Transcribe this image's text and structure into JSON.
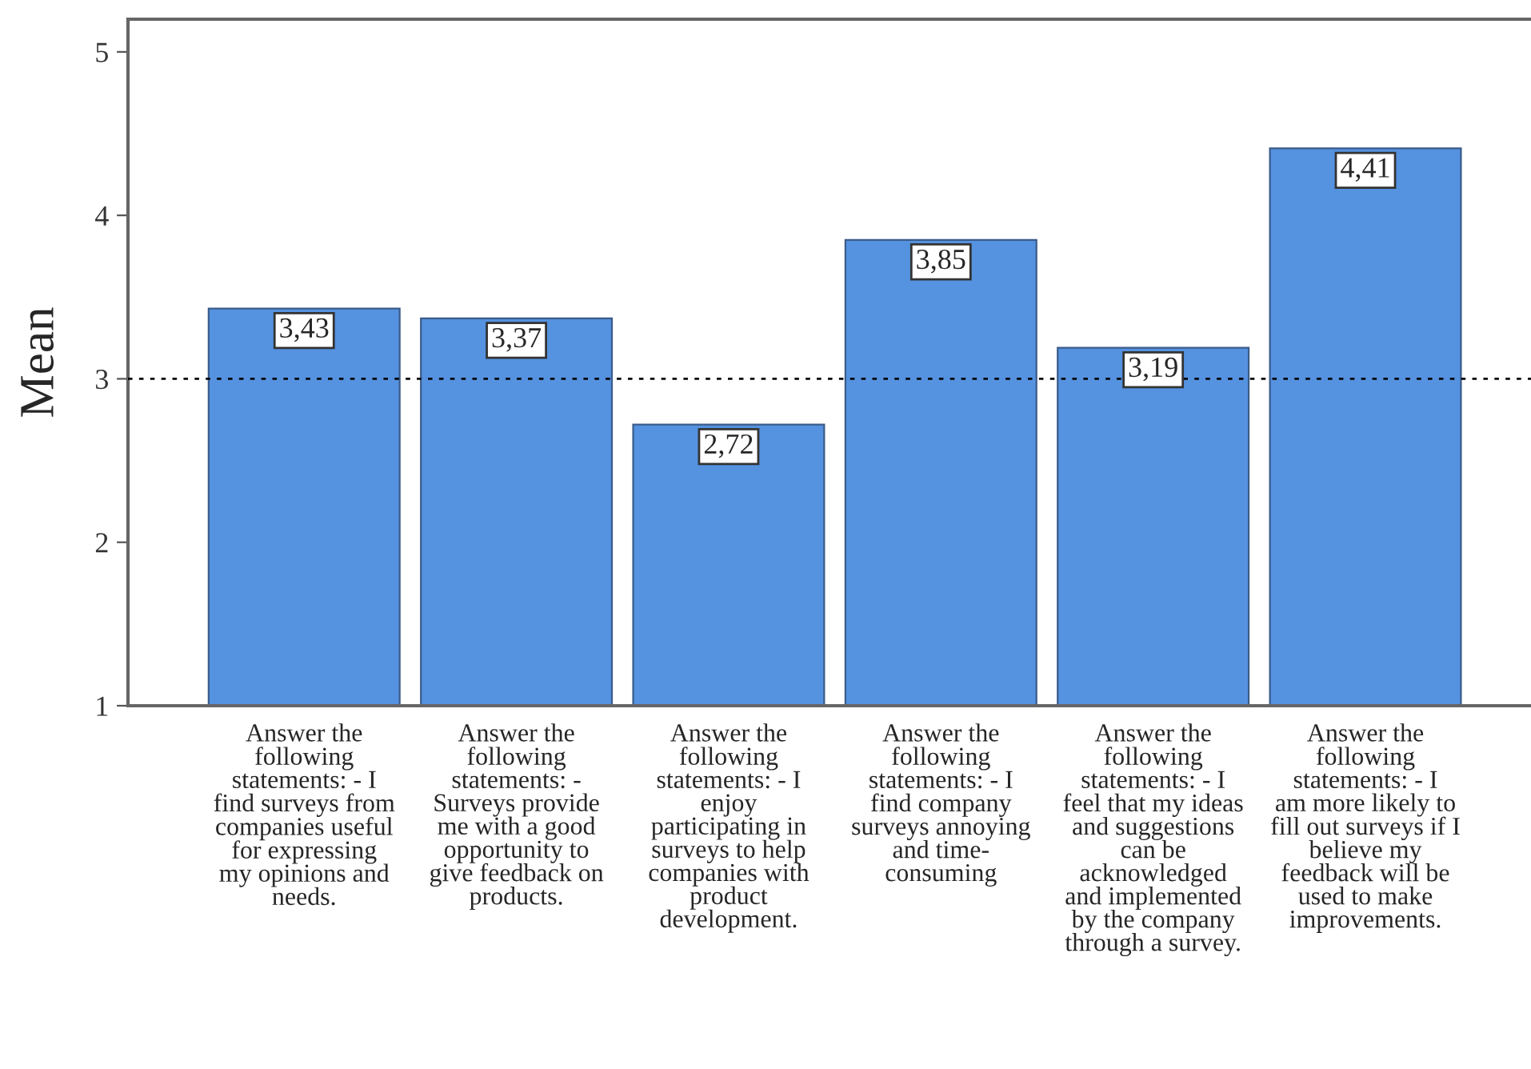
{
  "chart_data": {
    "type": "bar",
    "ylabel": "Mean",
    "categories": [
      "Answer the\nfollowing\nstatements: - I\nfind surveys from\ncompanies useful\nfor expressing\nmy opinions and\nneeds.",
      "Answer the\nfollowing\nstatements: -\nSurveys provide\nme with a good\nopportunity to\ngive feedback on\nproducts.",
      "Answer the\nfollowing\nstatements: - I\nenjoy\nparticipating in\nsurveys to help\ncompanies with\nproduct\ndevelopment.",
      "Answer the\nfollowing\nstatements: - I\nfind company\nsurveys annoying\nand time-\nconsuming",
      "Answer the\nfollowing\nstatements: - I\nfeel that my ideas\nand suggestions\ncan be\nacknowledged\nand implemented\nby the company\nthrough a survey.",
      "Answer the\nfollowing\nstatements: - I\nam more likely to\nfill out surveys if I\nbelieve my\nfeedback will be\nused to make\nimprovements."
    ],
    "values": [
      3.43,
      3.37,
      2.72,
      3.85,
      3.19,
      4.41
    ],
    "value_labels": [
      "3,43",
      "3,37",
      "2,72",
      "3,85",
      "3,19",
      "4,41"
    ],
    "color": "#5592e0",
    "ylim": [
      1,
      5.2
    ],
    "yticks": [
      1,
      2,
      3,
      4,
      5
    ],
    "ref_lines": [
      {
        "axis": "y",
        "value": 3,
        "color": "#000000",
        "line_style": "dotted"
      }
    ],
    "grid": false,
    "legend": false
  }
}
